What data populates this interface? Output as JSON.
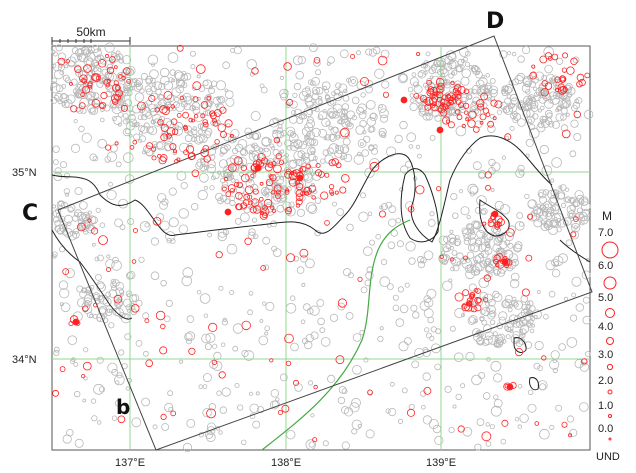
{
  "map": {
    "scale_bar": {
      "label": "50km"
    },
    "lat_labels": [
      "35°N",
      "34°N"
    ],
    "lon_labels": [
      "137°E",
      "138°E",
      "139°E"
    ],
    "region_labels": {
      "C": "C",
      "D": "D",
      "b": "b"
    },
    "legend": {
      "title": "M",
      "magnitudes": [
        "7.0",
        "6.0",
        "5.0",
        "4.0",
        "3.0",
        "2.0",
        "1.0",
        "0.0",
        "UND"
      ]
    },
    "colors": {
      "grid": "#8fd98f",
      "coastline": "#222222",
      "trough": "#44aa44",
      "frame": "#444444",
      "event_recent": "#ff2020",
      "event_background": "#b8b8b8"
    }
  }
}
